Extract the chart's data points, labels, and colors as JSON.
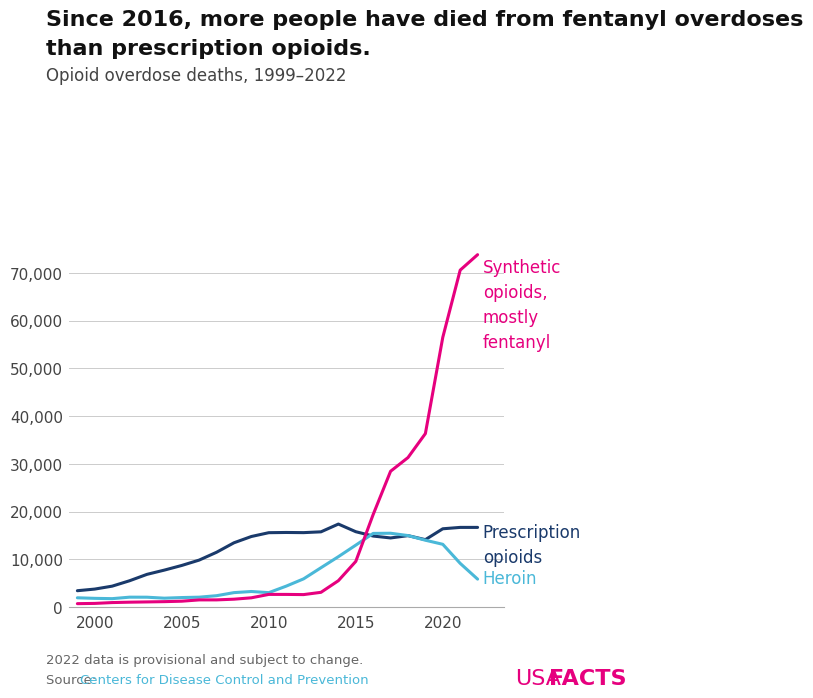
{
  "title_line1": "Since 2016, more people have died from fentanyl overdoses",
  "title_line2": "than prescription opioids.",
  "subtitle": "Opioid overdose deaths, 1999–2022",
  "footnote": "2022 data is provisional and subject to change.",
  "source_prefix": "Source: ",
  "source_link": "Centers for Disease Control and Prevention",
  "years": [
    1999,
    2000,
    2001,
    2002,
    2003,
    2004,
    2005,
    2006,
    2007,
    2008,
    2009,
    2010,
    2011,
    2012,
    2013,
    2014,
    2015,
    2016,
    2017,
    2018,
    2019,
    2020,
    2021,
    2022
  ],
  "prescription_opioids": [
    3442,
    3785,
    4397,
    5528,
    6868,
    7760,
    8735,
    9857,
    11499,
    13484,
    14800,
    15597,
    15643,
    15609,
    15778,
    17404,
    15803,
    14891,
    14495,
    14978,
    14139,
    16416,
    16706,
    16706
  ],
  "heroin": [
    1960,
    1842,
    1779,
    2089,
    2080,
    1878,
    2009,
    2088,
    2399,
    3041,
    3278,
    3036,
    4397,
    5926,
    8257,
    10574,
    12989,
    15446,
    15482,
    14996,
    14019,
    13165,
    9173,
    5871
  ],
  "synthetic_opioids": [
    730,
    782,
    957,
    1038,
    1094,
    1151,
    1245,
    1517,
    1520,
    1666,
    1956,
    2666,
    2666,
    2628,
    3105,
    5544,
    9580,
    19413,
    28466,
    31335,
    36359,
    56516,
    70601,
    73838
  ],
  "prescription_color": "#1a3a6b",
  "heroin_color": "#4ab8d8",
  "synthetic_color": "#e6007e",
  "background_color": "#ffffff",
  "ylim": [
    0,
    78000
  ],
  "yticks": [
    0,
    10000,
    20000,
    30000,
    40000,
    50000,
    60000,
    70000
  ],
  "xticks": [
    2000,
    2005,
    2010,
    2015,
    2020
  ],
  "xlim": [
    1998.5,
    2023.5
  ],
  "label_synthetic": "Synthetic\nopioids,\nmostly\nfentanyl",
  "label_prescription": "Prescription\nopioids",
  "label_heroin": "Heroin",
  "title_fontsize": 16,
  "subtitle_fontsize": 12,
  "tick_fontsize": 11,
  "annotation_fontsize": 12,
  "line_width": 2.2,
  "usafacts_fontsize": 16
}
